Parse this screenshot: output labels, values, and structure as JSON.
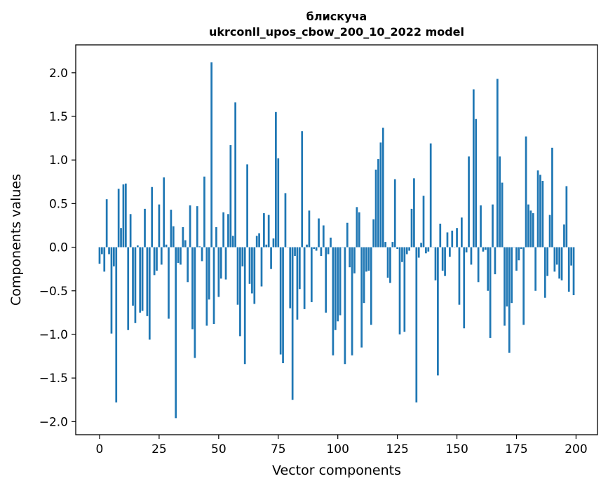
{
  "chart_data": {
    "type": "bar",
    "title_line1": "блискуча",
    "title_line2": "ukrconll_upos_cbow_200_10_2022 model",
    "xlabel": "Vector components",
    "ylabel": "Components values",
    "xlim": [
      -10,
      209
    ],
    "ylim": [
      -2.15,
      2.32
    ],
    "xticks": [
      0,
      25,
      50,
      75,
      100,
      125,
      150,
      175,
      200
    ],
    "xtick_labels": [
      "0",
      "25",
      "50",
      "75",
      "100",
      "125",
      "150",
      "175",
      "200"
    ],
    "yticks": [
      -2.0,
      -1.5,
      -1.0,
      -0.5,
      0.0,
      0.5,
      1.0,
      1.5,
      2.0
    ],
    "ytick_labels": [
      "−2.0",
      "−1.5",
      "−1.0",
      "−0.5",
      "0.0",
      "0.5",
      "1.0",
      "1.5",
      "2.0"
    ],
    "bar_color": "#1f77b4",
    "series": [
      {
        "name": "components",
        "x": [
          0,
          1,
          2,
          3,
          4,
          5,
          6,
          7,
          8,
          9,
          10,
          11,
          12,
          13,
          14,
          15,
          16,
          17,
          18,
          19,
          20,
          21,
          22,
          23,
          24,
          25,
          26,
          27,
          28,
          29,
          30,
          31,
          32,
          33,
          34,
          35,
          36,
          37,
          38,
          39,
          40,
          41,
          42,
          43,
          44,
          45,
          46,
          47,
          48,
          49,
          50,
          51,
          52,
          53,
          54,
          55,
          56,
          57,
          58,
          59,
          60,
          61,
          62,
          63,
          64,
          65,
          66,
          67,
          68,
          69,
          70,
          71,
          72,
          73,
          74,
          75,
          76,
          77,
          78,
          79,
          80,
          81,
          82,
          83,
          84,
          85,
          86,
          87,
          88,
          89,
          90,
          91,
          92,
          93,
          94,
          95,
          96,
          97,
          98,
          99,
          100,
          101,
          102,
          103,
          104,
          105,
          106,
          107,
          108,
          109,
          110,
          111,
          112,
          113,
          114,
          115,
          116,
          117,
          118,
          119,
          120,
          121,
          122,
          123,
          124,
          125,
          126,
          127,
          128,
          129,
          130,
          131,
          132,
          133,
          134,
          135,
          136,
          137,
          138,
          139,
          140,
          141,
          142,
          143,
          144,
          145,
          146,
          147,
          148,
          149,
          150,
          151,
          152,
          153,
          154,
          155,
          156,
          157,
          158,
          159,
          160,
          161,
          162,
          163,
          164,
          165,
          166,
          167,
          168,
          169,
          170,
          171,
          172,
          173,
          174,
          175,
          176,
          177,
          178,
          179,
          180,
          181,
          182,
          183,
          184,
          185,
          186,
          187,
          188,
          189,
          190,
          191,
          192,
          193,
          194,
          195,
          196,
          197,
          198,
          199
        ],
        "values": [
          -0.19,
          -0.08,
          -0.28,
          0.55,
          -0.08,
          -0.99,
          -0.22,
          -1.78,
          0.67,
          0.22,
          0.72,
          0.73,
          -0.95,
          0.38,
          -0.67,
          -0.87,
          0.02,
          -0.75,
          -0.73,
          0.44,
          -0.79,
          -1.06,
          0.69,
          -0.32,
          -0.27,
          0.49,
          -0.2,
          0.8,
          0.03,
          -0.82,
          0.43,
          0.24,
          -1.96,
          -0.18,
          -0.2,
          0.23,
          0.08,
          -0.4,
          0.48,
          -0.94,
          -1.27,
          0.47,
          0.01,
          -0.16,
          0.81,
          -0.9,
          -0.6,
          2.12,
          -0.88,
          0.23,
          -0.57,
          -0.36,
          0.4,
          -0.37,
          0.38,
          1.17,
          0.13,
          1.66,
          -0.66,
          -1.02,
          -0.22,
          -1.34,
          0.95,
          -0.42,
          -0.53,
          -0.65,
          0.13,
          0.16,
          -0.45,
          0.39,
          0.03,
          0.37,
          -0.25,
          0.1,
          1.55,
          1.02,
          -1.23,
          -1.33,
          0.62,
          0.0,
          -0.7,
          -1.75,
          -0.1,
          -0.83,
          -0.48,
          1.33,
          -0.71,
          0.03,
          0.42,
          -0.63,
          -0.02,
          -0.04,
          0.33,
          -0.1,
          0.25,
          -0.75,
          -0.08,
          0.11,
          -1.24,
          -0.95,
          -0.85,
          -0.78,
          0.0,
          -1.34,
          0.28,
          -0.23,
          -1.24,
          -0.3,
          0.46,
          0.4,
          -1.15,
          -0.64,
          -0.28,
          -0.27,
          -0.89,
          0.32,
          0.89,
          1.01,
          1.2,
          1.37,
          0.06,
          -0.35,
          -0.41,
          0.06,
          0.78,
          -0.02,
          -1.0,
          -0.17,
          -0.97,
          -0.08,
          -0.04,
          0.44,
          0.79,
          -1.78,
          -0.12,
          0.05,
          0.59,
          -0.07,
          -0.05,
          1.19,
          0.0,
          -0.38,
          -1.47,
          0.27,
          -0.27,
          -0.33,
          0.17,
          -0.11,
          0.19,
          0.0,
          0.22,
          -0.66,
          0.34,
          -0.93,
          -0.06,
          1.04,
          -0.2,
          1.81,
          1.47,
          -0.4,
          0.48,
          -0.05,
          -0.03,
          -0.5,
          -1.04,
          0.49,
          -0.31,
          1.93,
          1.04,
          0.74,
          -0.9,
          -0.68,
          -1.21,
          -0.64,
          0.0,
          -0.27,
          -0.15,
          -0.02,
          -0.89,
          1.27,
          0.49,
          0.42,
          0.39,
          -0.5,
          0.88,
          0.83,
          0.76,
          -0.58,
          -0.33,
          0.37,
          1.14,
          -0.28,
          -0.2,
          -0.36,
          -0.38,
          0.26,
          0.7,
          -0.51,
          -0.21,
          -0.55
        ]
      }
    ]
  }
}
